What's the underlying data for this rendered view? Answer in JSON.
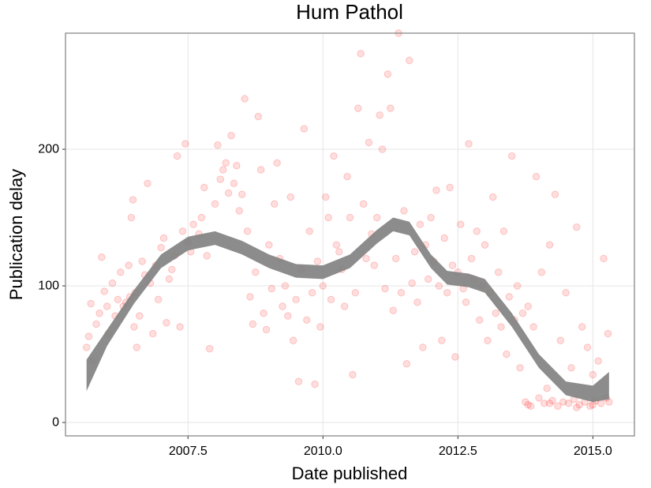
{
  "chart_data": {
    "type": "scatter",
    "title": "Hum Pathol",
    "x_label": "Date published",
    "y_label": "Publication delay",
    "color": "#ff0000",
    "xlim": [
      2005.23,
      2015.77
    ],
    "ylim": [
      -9.8,
      285
    ],
    "xticks": [
      2007.5,
      {
        "value": 2010,
        "label": "2010.0"
      },
      2012.5,
      {
        "value": 2015,
        "label": "2015.0"
      }
    ],
    "yticks": [
      0,
      100,
      200
    ],
    "grid": true,
    "x": [
      2005.62,
      2005.66,
      2005.7,
      2005.74,
      2005.8,
      2005.86,
      2005.9,
      2005.95,
      2006.0,
      2006.02,
      2006.1,
      2006.15,
      2006.2,
      2006.25,
      2006.3,
      2006.35,
      2006.4,
      2006.42,
      2006.45,
      2006.48,
      2006.5,
      2006.52,
      2006.55,
      2006.6,
      2006.65,
      2006.7,
      2006.75,
      2006.8,
      2006.85,
      2006.9,
      2006.95,
      2007.0,
      2007.05,
      2007.1,
      2007.15,
      2007.2,
      2007.25,
      2007.3,
      2007.35,
      2007.4,
      2007.45,
      2007.5,
      2007.55,
      2007.6,
      2007.7,
      2007.75,
      2007.8,
      2007.85,
      2007.9,
      2008.0,
      2008.05,
      2008.1,
      2008.15,
      2008.2,
      2008.25,
      2008.3,
      2008.35,
      2008.4,
      2008.45,
      2008.5,
      2008.55,
      2008.6,
      2008.65,
      2008.7,
      2008.75,
      2008.8,
      2008.85,
      2008.9,
      2008.95,
      2009.0,
      2009.05,
      2009.1,
      2009.15,
      2009.2,
      2009.25,
      2009.3,
      2009.35,
      2009.4,
      2009.45,
      2009.5,
      2009.55,
      2009.6,
      2009.65,
      2009.7,
      2009.75,
      2009.8,
      2009.85,
      2009.9,
      2009.95,
      2010.0,
      2010.05,
      2010.1,
      2010.15,
      2010.2,
      2010.25,
      2010.3,
      2010.35,
      2010.4,
      2010.45,
      2010.5,
      2010.55,
      2010.6,
      2010.65,
      2010.7,
      2010.75,
      2010.8,
      2010.85,
      2010.9,
      2010.95,
      2011.0,
      2011.05,
      2011.1,
      2011.15,
      2011.2,
      2011.25,
      2011.3,
      2011.35,
      2011.4,
      2011.45,
      2011.5,
      2011.55,
      2011.6,
      2011.65,
      2011.7,
      2011.75,
      2011.8,
      2011.85,
      2011.9,
      2011.95,
      2012.0,
      2012.05,
      2012.1,
      2012.15,
      2012.2,
      2012.25,
      2012.3,
      2012.35,
      2012.4,
      2012.45,
      2012.5,
      2012.55,
      2012.6,
      2012.65,
      2012.7,
      2012.75,
      2012.8,
      2012.85,
      2012.9,
      2012.95,
      2013.0,
      2013.05,
      2013.1,
      2013.15,
      2013.2,
      2013.25,
      2013.3,
      2013.35,
      2013.4,
      2013.45,
      2013.5,
      2013.55,
      2013.6,
      2013.65,
      2013.7,
      2013.75,
      2013.8,
      2013.85,
      2013.9,
      2013.95,
      2014.0,
      2014.05,
      2014.1,
      2014.15,
      2014.2,
      2014.25,
      2014.3,
      2014.35,
      2014.4,
      2014.45,
      2014.5,
      2014.55,
      2014.6,
      2014.65,
      2014.7,
      2014.75,
      2014.8,
      2014.85,
      2014.9,
      2014.95,
      2015.0,
      2015.05,
      2015.1,
      2015.15,
      2015.2,
      2015.25,
      2015.28,
      2015.3,
      2013.8,
      2014.2,
      2014.7,
      2015.0
    ],
    "values": [
      55,
      63,
      87,
      45,
      72,
      80,
      121,
      96,
      85,
      65,
      102,
      78,
      90,
      110,
      85,
      88,
      115,
      92,
      150,
      163,
      70,
      95,
      55,
      78,
      118,
      108,
      175,
      102,
      65,
      115,
      90,
      128,
      135,
      73,
      105,
      112,
      122,
      195,
      70,
      140,
      204,
      132,
      125,
      145,
      138,
      150,
      172,
      122,
      54,
      160,
      203,
      178,
      185,
      190,
      168,
      210,
      175,
      188,
      155,
      167,
      237,
      140,
      92,
      72,
      110,
      224,
      185,
      80,
      68,
      130,
      98,
      160,
      190,
      120,
      85,
      100,
      78,
      165,
      60,
      90,
      30,
      112,
      215,
      75,
      140,
      95,
      28,
      118,
      70,
      100,
      165,
      150,
      90,
      195,
      130,
      125,
      112,
      85,
      180,
      150,
      35,
      95,
      230,
      270,
      160,
      120,
      205,
      138,
      115,
      150,
      225,
      200,
      98,
      255,
      230,
      82,
      120,
      285,
      95,
      155,
      43,
      265,
      102,
      125,
      88,
      145,
      55,
      130,
      105,
      150,
      118,
      170,
      100,
      60,
      135,
      95,
      172,
      115,
      48,
      110,
      145,
      98,
      88,
      204,
      120,
      105,
      140,
      75,
      100,
      130,
      60,
      95,
      165,
      80,
      110,
      70,
      140,
      50,
      92,
      195,
      75,
      100,
      40,
      80,
      15,
      85,
      12,
      70,
      180,
      18,
      110,
      14,
      25,
      130,
      16,
      167,
      12,
      60,
      15,
      95,
      14,
      40,
      17,
      143,
      13,
      70,
      15,
      55,
      12,
      35,
      16,
      45,
      14,
      120,
      18,
      65,
      15,
      13,
      14,
      11,
      13
    ],
    "band": {
      "color": "#808080",
      "x": [
        2005.62,
        2006.0,
        2006.5,
        2007.0,
        2007.5,
        2008.0,
        2008.5,
        2009.0,
        2009.5,
        2010.0,
        2010.5,
        2011.0,
        2011.3,
        2011.6,
        2012.0,
        2012.3,
        2012.7,
        2013.0,
        2013.5,
        2014.0,
        2014.5,
        2015.0,
        2015.3
      ],
      "lower": [
        23,
        56,
        87,
        113,
        126,
        130,
        123,
        113,
        106,
        105,
        113,
        131,
        140,
        137,
        113,
        101,
        99,
        95,
        70,
        40,
        20,
        15,
        17
      ],
      "upper": [
        46,
        68,
        97,
        123,
        136,
        140,
        133,
        123,
        116,
        115,
        123,
        141,
        150,
        147,
        123,
        111,
        109,
        105,
        80,
        50,
        30,
        27,
        37
      ]
    }
  }
}
